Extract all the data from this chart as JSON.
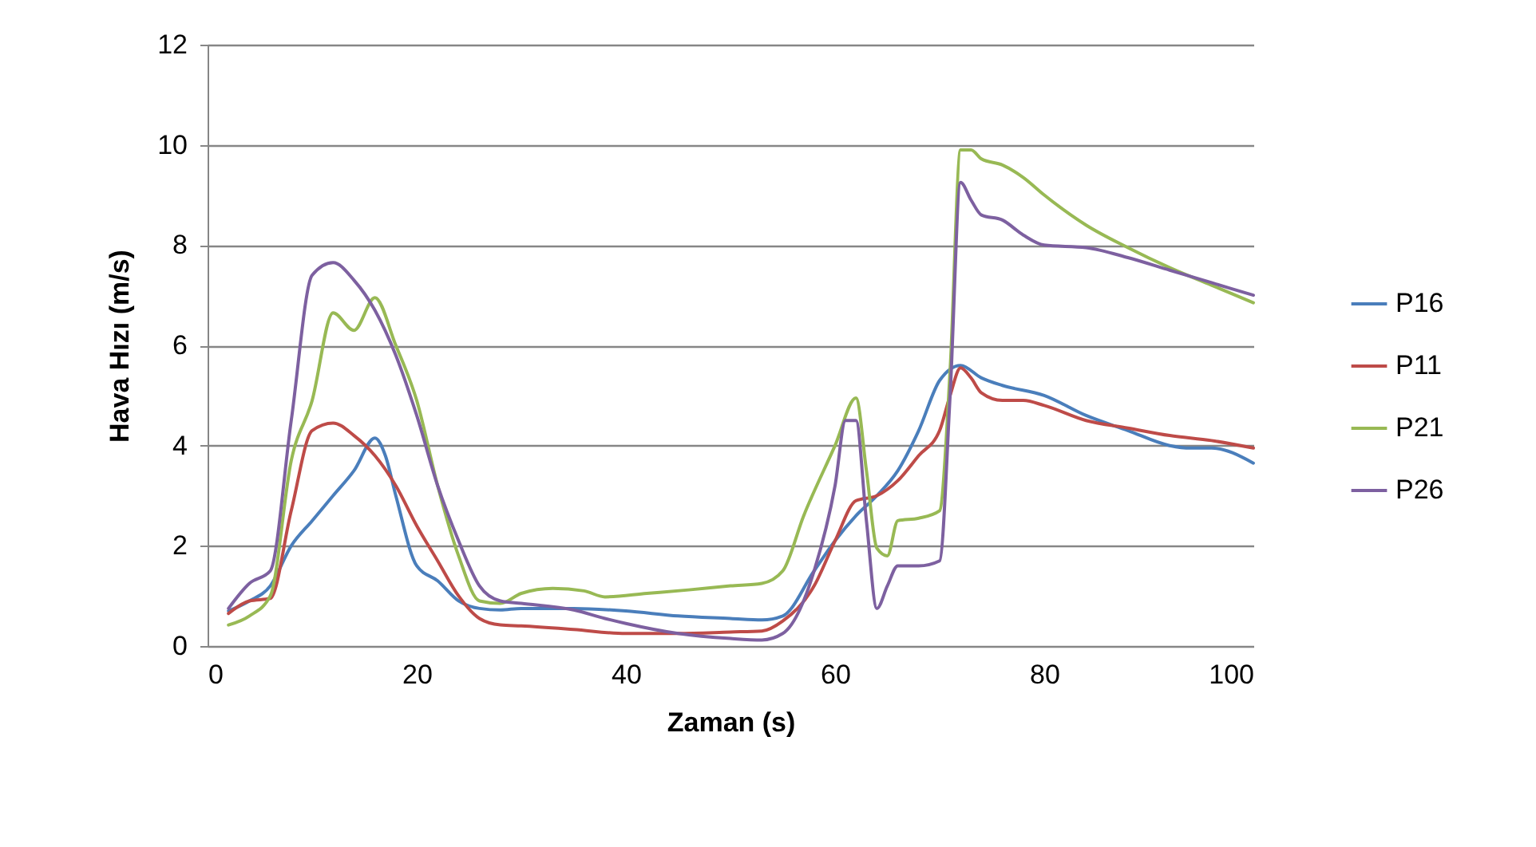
{
  "chart_data": {
    "type": "line",
    "xlabel": "Zaman (s)",
    "ylabel": "Hava Hızı (m/s)",
    "xlim": [
      0,
      100
    ],
    "xticks": [
      0,
      20,
      40,
      60,
      80,
      100
    ],
    "ylim": [
      0,
      12
    ],
    "yticks": [
      0,
      2,
      4,
      6,
      8,
      10,
      12
    ],
    "grid": "y",
    "legend": "right",
    "marker": "none",
    "line_style": "solid",
    "series": [
      {
        "name": "P16",
        "color": "#4a7ebb",
        "x": [
          2,
          4,
          6,
          8,
          10,
          12,
          14,
          16,
          17,
          18,
          20,
          22,
          24,
          26,
          28,
          30,
          35,
          40,
          45,
          50,
          53,
          55,
          58,
          60,
          62,
          64,
          66,
          68,
          70,
          72,
          74,
          76,
          80,
          84,
          88,
          92,
          94,
          96,
          100
        ],
        "values": [
          0.7,
          0.9,
          1.2,
          2.0,
          2.5,
          3.0,
          3.5,
          4.15,
          3.8,
          3.0,
          1.6,
          1.3,
          0.9,
          0.75,
          0.72,
          0.75,
          0.75,
          0.7,
          0.6,
          0.55,
          0.52,
          0.6,
          1.5,
          2.1,
          2.6,
          3.0,
          3.5,
          4.3,
          5.3,
          5.6,
          5.35,
          5.2,
          5.0,
          4.6,
          4.3,
          4.0,
          3.95,
          3.95,
          3.65
        ]
      },
      {
        "name": "P11",
        "color": "#be4b48",
        "x": [
          2,
          4,
          6,
          8,
          10,
          12,
          14,
          16,
          18,
          20,
          22,
          24,
          26,
          28,
          30,
          35,
          40,
          45,
          50,
          53,
          55,
          58,
          60,
          62,
          64,
          66,
          68,
          70,
          71,
          72,
          73,
          74,
          76,
          78,
          80,
          84,
          88,
          92,
          96,
          100
        ],
        "values": [
          0.65,
          0.9,
          0.95,
          2.7,
          4.3,
          4.45,
          4.2,
          3.8,
          3.2,
          2.4,
          1.7,
          1.0,
          0.55,
          0.42,
          0.4,
          0.33,
          0.25,
          0.25,
          0.28,
          0.3,
          0.5,
          1.2,
          2.1,
          2.9,
          3.0,
          3.3,
          3.8,
          4.3,
          5.0,
          5.55,
          5.35,
          5.05,
          4.9,
          4.9,
          4.8,
          4.5,
          4.35,
          4.2,
          4.1,
          3.95
        ]
      },
      {
        "name": "P21",
        "color": "#98b954",
        "x": [
          2,
          4,
          6,
          8,
          10,
          12,
          14,
          16,
          18,
          20,
          22,
          24,
          26,
          28,
          30,
          33,
          36,
          38,
          42,
          46,
          50,
          53,
          55,
          57,
          60,
          62,
          63,
          64,
          65,
          66,
          68,
          70,
          71,
          72,
          73,
          74,
          76,
          78,
          80,
          84,
          88,
          92,
          96,
          100
        ],
        "values": [
          0.42,
          0.6,
          1.0,
          3.7,
          4.9,
          6.65,
          6.3,
          6.95,
          6.0,
          4.9,
          3.2,
          1.8,
          0.9,
          0.85,
          1.05,
          1.15,
          1.1,
          0.98,
          1.05,
          1.12,
          1.2,
          1.25,
          1.5,
          2.6,
          4.0,
          4.95,
          3.5,
          1.95,
          1.8,
          2.5,
          2.55,
          2.7,
          5.5,
          9.9,
          9.9,
          9.72,
          9.6,
          9.35,
          9.0,
          8.4,
          7.95,
          7.55,
          7.2,
          6.85
        ]
      },
      {
        "name": "P26",
        "color": "#7d60a0",
        "x": [
          2,
          4,
          6,
          8,
          10,
          12,
          14,
          16,
          18,
          20,
          22,
          24,
          26,
          28,
          30,
          35,
          38,
          40,
          45,
          50,
          53,
          55,
          58,
          60,
          61,
          62,
          63,
          64,
          65,
          66,
          68,
          70,
          71,
          72,
          73,
          74,
          76,
          78,
          80,
          84,
          88,
          92,
          96,
          100
        ],
        "values": [
          0.75,
          1.25,
          1.5,
          4.5,
          7.4,
          7.65,
          7.3,
          6.7,
          5.8,
          4.6,
          3.2,
          2.1,
          1.2,
          0.9,
          0.85,
          0.72,
          0.55,
          0.45,
          0.25,
          0.15,
          0.12,
          0.25,
          1.5,
          3.2,
          4.5,
          4.5,
          2.5,
          0.75,
          1.2,
          1.6,
          1.6,
          1.7,
          5.0,
          9.25,
          8.9,
          8.6,
          8.5,
          8.2,
          8.0,
          7.95,
          7.75,
          7.5,
          7.25,
          7.0
        ]
      }
    ]
  }
}
